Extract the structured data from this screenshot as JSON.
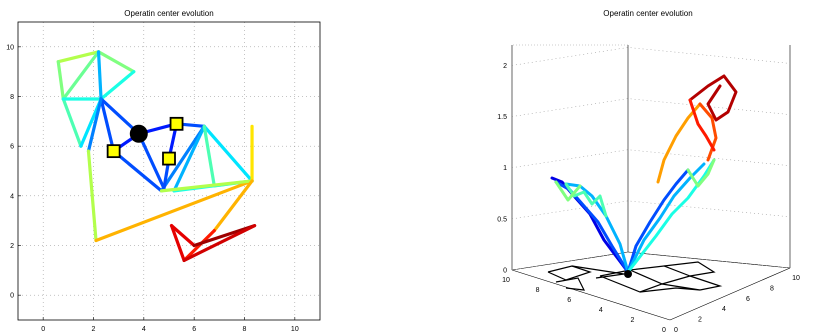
{
  "chart_data": [
    {
      "type": "line",
      "title": "Operatin center evolution",
      "xlabel": "",
      "ylabel": "",
      "xlim": [
        -1,
        11
      ],
      "ylim": [
        -1,
        11
      ],
      "xticks": [
        "0",
        "2",
        "4",
        "6",
        "8",
        "10"
      ],
      "yticks": [
        "0",
        "2",
        "4",
        "6",
        "8",
        "10"
      ],
      "grid": true,
      "colormap": "jet",
      "segments": [
        {
          "x1": 0.6,
          "y1": 9.4,
          "x2": 2.2,
          "y2": 9.8,
          "c": 0.55
        },
        {
          "x1": 2.2,
          "y1": 9.8,
          "x2": 3.6,
          "y2": 9.0,
          "c": 0.5
        },
        {
          "x1": 3.6,
          "y1": 9.0,
          "x2": 2.3,
          "y2": 7.9,
          "c": 0.4
        },
        {
          "x1": 0.6,
          "y1": 9.4,
          "x2": 0.8,
          "y2": 7.9,
          "c": 0.5
        },
        {
          "x1": 0.8,
          "y1": 7.9,
          "x2": 2.2,
          "y2": 9.8,
          "c": 0.48
        },
        {
          "x1": 0.8,
          "y1": 7.9,
          "x2": 1.5,
          "y2": 6.0,
          "c": 0.45
        },
        {
          "x1": 1.5,
          "y1": 6.0,
          "x2": 2.3,
          "y2": 7.9,
          "c": 0.35
        },
        {
          "x1": 0.8,
          "y1": 7.9,
          "x2": 2.3,
          "y2": 7.9,
          "c": 0.4
        },
        {
          "x1": 2.2,
          "y1": 9.8,
          "x2": 2.3,
          "y2": 7.9,
          "c": 0.3
        },
        {
          "x1": 2.3,
          "y1": 7.9,
          "x2": 3.8,
          "y2": 6.5,
          "c": 0.2
        },
        {
          "x1": 2.3,
          "y1": 7.9,
          "x2": 2.8,
          "y2": 5.8,
          "c": 0.2
        },
        {
          "x1": 2.3,
          "y1": 7.9,
          "x2": 1.8,
          "y2": 5.8,
          "c": 0.25
        },
        {
          "x1": 2.8,
          "y1": 5.8,
          "x2": 3.8,
          "y2": 6.5,
          "c": 0.15
        },
        {
          "x1": 3.8,
          "y1": 6.5,
          "x2": 5.3,
          "y2": 6.9,
          "c": 0.15
        },
        {
          "x1": 5.3,
          "y1": 6.9,
          "x2": 6.4,
          "y2": 6.8,
          "c": 0.2
        },
        {
          "x1": 6.4,
          "y1": 6.8,
          "x2": 8.3,
          "y2": 4.6,
          "c": 0.35
        },
        {
          "x1": 6.4,
          "y1": 6.8,
          "x2": 4.7,
          "y2": 4.2,
          "c": 0.25
        },
        {
          "x1": 6.4,
          "y1": 6.8,
          "x2": 5.2,
          "y2": 4.2,
          "c": 0.3
        },
        {
          "x1": 6.4,
          "y1": 6.8,
          "x2": 6.8,
          "y2": 4.4,
          "c": 0.45
        },
        {
          "x1": 6.8,
          "y1": 4.4,
          "x2": 8.3,
          "y2": 4.6,
          "c": 0.5
        },
        {
          "x1": 5.2,
          "y1": 4.2,
          "x2": 8.3,
          "y2": 4.6,
          "c": 0.4
        },
        {
          "x1": 3.8,
          "y1": 6.5,
          "x2": 4.8,
          "y2": 4.3,
          "c": 0.2
        },
        {
          "x1": 2.8,
          "y1": 5.8,
          "x2": 4.7,
          "y2": 4.2,
          "c": 0.2
        },
        {
          "x1": 5.0,
          "y1": 5.5,
          "x2": 5.3,
          "y2": 6.9,
          "c": 0.15
        },
        {
          "x1": 5.0,
          "y1": 5.5,
          "x2": 4.8,
          "y2": 4.3,
          "c": 0.2
        },
        {
          "x1": 1.8,
          "y1": 5.8,
          "x2": 2.1,
          "y2": 2.2,
          "c": 0.55
        },
        {
          "x1": 2.1,
          "y1": 2.2,
          "x2": 8.3,
          "y2": 4.6,
          "c": 0.7
        },
        {
          "x1": 4.7,
          "y1": 4.2,
          "x2": 8.3,
          "y2": 4.6,
          "c": 0.55
        },
        {
          "x1": 8.3,
          "y1": 4.6,
          "x2": 8.3,
          "y2": 6.8,
          "c": 0.65
        },
        {
          "x1": 8.3,
          "y1": 4.6,
          "x2": 6.8,
          "y2": 2.6,
          "c": 0.7
        },
        {
          "x1": 6.8,
          "y1": 2.6,
          "x2": 5.6,
          "y2": 1.4,
          "c": 0.85
        },
        {
          "x1": 5.6,
          "y1": 1.4,
          "x2": 5.1,
          "y2": 2.8,
          "c": 0.9
        },
        {
          "x1": 5.1,
          "y1": 2.8,
          "x2": 6.0,
          "y2": 2.0,
          "c": 0.9
        },
        {
          "x1": 6.0,
          "y1": 2.0,
          "x2": 8.4,
          "y2": 2.8,
          "c": 0.97
        },
        {
          "x1": 8.4,
          "y1": 2.8,
          "x2": 5.6,
          "y2": 1.4,
          "c": 0.92
        }
      ],
      "center": {
        "x": 3.8,
        "y": 6.5
      },
      "markers": [
        {
          "x": 2.8,
          "y": 5.8
        },
        {
          "x": 5.3,
          "y": 6.9
        },
        {
          "x": 5.0,
          "y": 5.5
        }
      ]
    },
    {
      "type": "line",
      "title": "Operatin center evolution",
      "projection": "3d",
      "zlim": [
        0,
        2.2
      ],
      "zticks": [
        "0",
        "0.5",
        "1",
        "1.5",
        "2"
      ],
      "xticks_left": [
        "10",
        "8",
        "6",
        "4",
        "2",
        "0"
      ],
      "yticks_right": [
        "0",
        "2",
        "4",
        "6",
        "8",
        "10"
      ],
      "grid": true,
      "colormap": "jet"
    }
  ]
}
